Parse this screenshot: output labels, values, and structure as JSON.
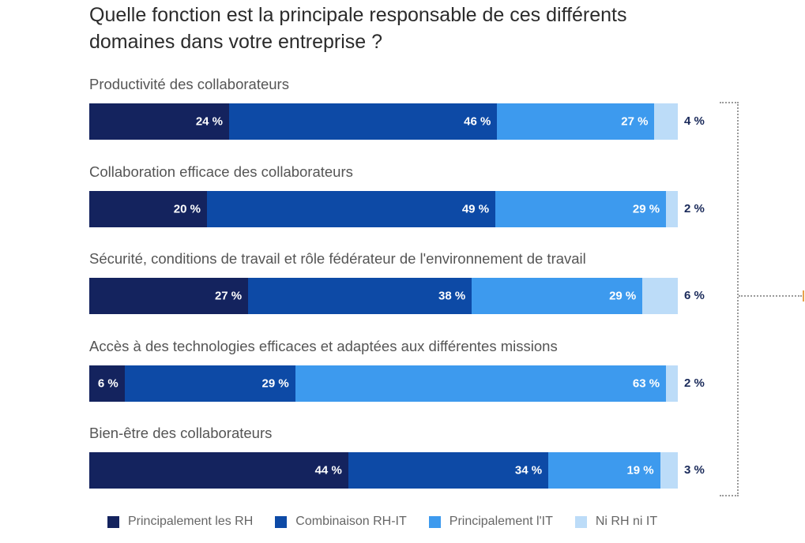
{
  "chart_data": {
    "type": "bar",
    "orientation": "horizontal",
    "stacked": true,
    "title": "Quelle fonction est la principale responsable de ces différents domaines dans votre entreprise ?",
    "unit": "%",
    "categories": [
      "Productivité des collaborateurs",
      "Collaboration efficace des collaborateurs",
      "Sécurité, conditions de travail et rôle fédérateur de l'environnement de travail",
      "Accès à des technologies efficaces et adaptées aux différentes missions",
      "Bien-être des collaborateurs"
    ],
    "series": [
      {
        "name": "Principalement les RH",
        "color": "#14235e",
        "values": [
          24,
          20,
          27,
          6,
          44
        ]
      },
      {
        "name": "Combinaison RH-IT",
        "color": "#0d4aa6",
        "values": [
          46,
          49,
          38,
          29,
          34
        ]
      },
      {
        "name": "Principalement l'IT",
        "color": "#3d9aee",
        "values": [
          27,
          29,
          29,
          63,
          19
        ]
      },
      {
        "name": "Ni RH ni IT",
        "color": "#bcdcf8",
        "values": [
          4,
          2,
          6,
          2,
          3
        ]
      }
    ],
    "data_labels": [
      [
        "24 %",
        "46 %",
        "27 %",
        "4 %"
      ],
      [
        "20 %",
        "49 %",
        "29 %",
        "2 %"
      ],
      [
        "27 %",
        "38 %",
        "29 %",
        "6 %"
      ],
      [
        "6 %",
        "29 %",
        "63 %",
        "2 %"
      ],
      [
        "44 %",
        "34 %",
        "19 %",
        "3 %"
      ]
    ],
    "legend_position": "bottom",
    "grid": false
  }
}
